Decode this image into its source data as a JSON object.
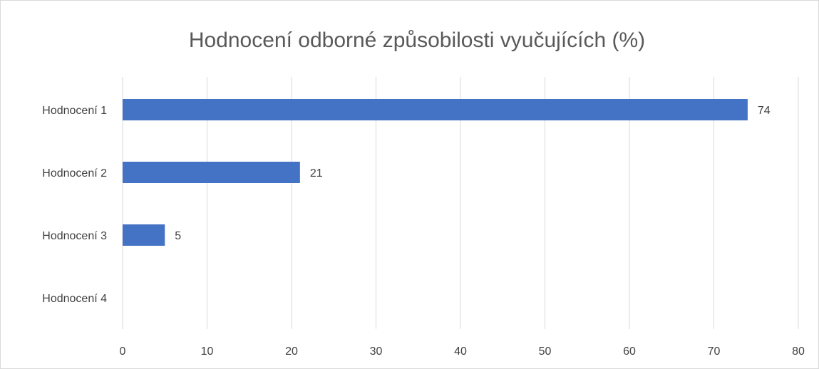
{
  "chart_data": {
    "type": "barh",
    "title": "Hodnocení odborné způsobilosti vyučujících (%)",
    "categories": [
      "Hodnocení 1",
      "Hodnocení 2",
      "Hodnocení 3",
      "Hodnocení 4"
    ],
    "values": [
      74,
      21,
      5,
      null
    ],
    "color": "#4472c4",
    "xlim": [
      0,
      80
    ],
    "xticks": [
      0,
      10,
      20,
      30,
      40,
      50,
      60,
      70,
      80
    ],
    "grid": true
  }
}
